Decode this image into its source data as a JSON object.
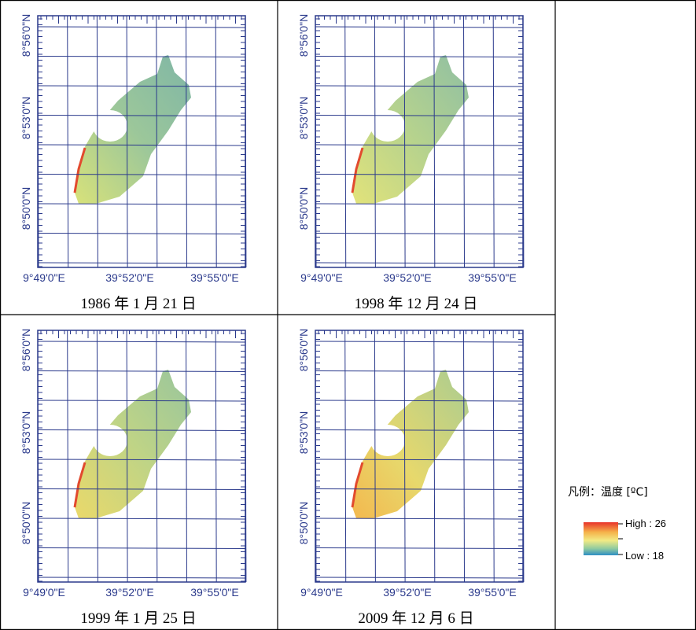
{
  "axis_labels": {
    "lat": [
      "8°56'0\"N",
      "8°53'0\"N",
      "8°50'0\"N"
    ],
    "lon": [
      "9°49'0\"E",
      "39°52'0\"E",
      "39°55'0\"E"
    ]
  },
  "panels": [
    {
      "caption": "1986 年 1 月 21 日"
    },
    {
      "caption": "1998 年 12 月 24 日"
    },
    {
      "caption": "1999 年 1 月 25 日"
    },
    {
      "caption": "2009 年 12 月 6 日"
    }
  ],
  "legend": {
    "title": "凡例：温度 [ºC]",
    "high": "High : 26",
    "low": "Low : 18"
  }
}
